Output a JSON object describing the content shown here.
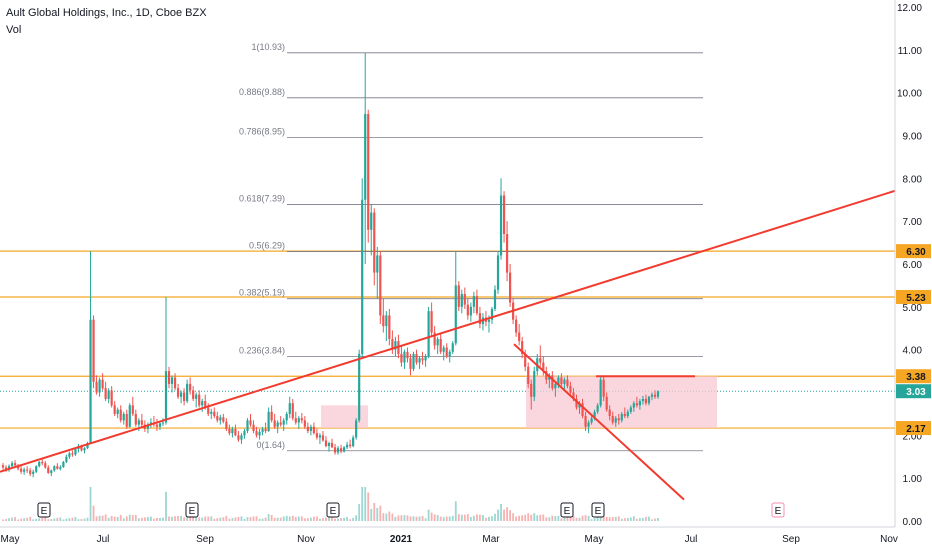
{
  "header": {
    "title": "Ault Global Holdings, Inc., 1D, Cboe BZX",
    "volume_label": "Vol"
  },
  "colors": {
    "bull": "#26a69a",
    "bear": "#ef5350",
    "trendline": "#f23b2f",
    "level_line": "#f5a623",
    "fib_line": "#787b86",
    "zone_fill": "#f8c8d4",
    "last_price": "#26a69a"
  },
  "chart_data": {
    "type": "candlestick",
    "symbol": "Ault Global Holdings, Inc.",
    "interval": "1D",
    "exchange": "Cboe BZX",
    "y_axis": {
      "range": [
        0,
        12
      ],
      "ticks": [
        "0.00",
        "1.00",
        "2.00",
        "3.00",
        "4.00",
        "5.00",
        "6.00",
        "7.00",
        "8.00",
        "9.00",
        "10.00",
        "11.00",
        "12.00"
      ]
    },
    "x_axis": {
      "ticks": [
        "May",
        "Jul",
        "Sep",
        "Nov",
        "2021",
        "Mar",
        "May",
        "Jul",
        "Sep",
        "Nov"
      ]
    },
    "price_levels": [
      {
        "label": "6.30",
        "value": 6.3
      },
      {
        "label": "5.23",
        "value": 5.23
      },
      {
        "label": "3.38",
        "value": 3.38
      },
      {
        "label": "2.17",
        "value": 2.17
      }
    ],
    "last_price": {
      "label": "3.03",
      "value": 3.03
    },
    "fibonacci": [
      {
        "label": "1(10.93)",
        "value": 10.93
      },
      {
        "label": "0.886(9.88)",
        "value": 9.88
      },
      {
        "label": "0.786(8.95)",
        "value": 8.95
      },
      {
        "label": "0.618(7.39)",
        "value": 7.39
      },
      {
        "label": "0.5(6.29)",
        "value": 6.29
      },
      {
        "label": "0.382(5.19)",
        "value": 5.19
      },
      {
        "label": "0.236(3.84)",
        "value": 3.84
      },
      {
        "label": "0(1.64)",
        "value": 1.64
      }
    ],
    "earnings_markers": [
      "E",
      "E",
      "E",
      "E",
      "E",
      "E"
    ],
    "candles_ohlc": [
      [
        1.3,
        1.35,
        1.2,
        1.25
      ],
      [
        1.25,
        1.3,
        1.15,
        1.2
      ],
      [
        1.2,
        1.32,
        1.15,
        1.28
      ],
      [
        1.28,
        1.4,
        1.22,
        1.35
      ],
      [
        1.35,
        1.42,
        1.25,
        1.3
      ],
      [
        1.3,
        1.33,
        1.18,
        1.22
      ],
      [
        1.22,
        1.3,
        1.1,
        1.15
      ],
      [
        1.15,
        1.25,
        1.08,
        1.2
      ],
      [
        1.2,
        1.28,
        1.12,
        1.18
      ],
      [
        1.18,
        1.24,
        1.05,
        1.1
      ],
      [
        1.1,
        1.2,
        1.02,
        1.15
      ],
      [
        1.15,
        1.3,
        1.12,
        1.28
      ],
      [
        1.28,
        1.4,
        1.25,
        1.38
      ],
      [
        1.38,
        1.45,
        1.3,
        1.35
      ],
      [
        1.35,
        1.4,
        1.22,
        1.25
      ],
      [
        1.25,
        1.3,
        1.1,
        1.12
      ],
      [
        1.12,
        1.2,
        1.05,
        1.18
      ],
      [
        1.18,
        1.3,
        1.15,
        1.28
      ],
      [
        1.28,
        1.35,
        1.2,
        1.22
      ],
      [
        1.22,
        1.3,
        1.18,
        1.26
      ],
      [
        1.26,
        1.4,
        1.24,
        1.38
      ],
      [
        1.38,
        1.55,
        1.35,
        1.5
      ],
      [
        1.5,
        1.62,
        1.45,
        1.58
      ],
      [
        1.58,
        1.65,
        1.5,
        1.55
      ],
      [
        1.55,
        1.7,
        1.52,
        1.68
      ],
      [
        1.68,
        1.8,
        1.6,
        1.75
      ],
      [
        1.75,
        1.78,
        1.62,
        1.65
      ],
      [
        1.65,
        1.72,
        1.58,
        1.7
      ],
      [
        1.7,
        1.85,
        1.68,
        1.82
      ],
      [
        1.82,
        6.3,
        1.8,
        4.7
      ],
      [
        4.7,
        4.8,
        3.1,
        3.25
      ],
      [
        3.25,
        3.4,
        2.95,
        3.0
      ],
      [
        3.0,
        3.35,
        2.9,
        3.3
      ],
      [
        3.3,
        3.45,
        3.05,
        3.1
      ],
      [
        3.1,
        3.25,
        2.8,
        2.85
      ],
      [
        2.85,
        3.1,
        2.75,
        3.05
      ],
      [
        3.05,
        3.15,
        2.65,
        2.7
      ],
      [
        2.7,
        2.8,
        2.45,
        2.5
      ],
      [
        2.5,
        2.65,
        2.4,
        2.6
      ],
      [
        2.6,
        2.7,
        2.3,
        2.35
      ],
      [
        2.35,
        2.55,
        2.25,
        2.5
      ],
      [
        2.5,
        2.6,
        2.15,
        2.2
      ],
      [
        2.2,
        2.75,
        2.18,
        2.7
      ],
      [
        2.7,
        2.9,
        2.45,
        2.5
      ],
      [
        2.5,
        2.6,
        2.2,
        2.25
      ],
      [
        2.25,
        2.4,
        2.1,
        2.35
      ],
      [
        2.35,
        2.5,
        2.2,
        2.25
      ],
      [
        2.25,
        2.35,
        2.08,
        2.15
      ],
      [
        2.15,
        2.3,
        2.05,
        2.25
      ],
      [
        2.25,
        2.4,
        2.18,
        2.3
      ],
      [
        2.3,
        2.45,
        2.2,
        2.25
      ],
      [
        2.25,
        2.38,
        2.1,
        2.2
      ],
      [
        2.2,
        2.32,
        2.12,
        2.28
      ],
      [
        2.28,
        2.4,
        2.22,
        2.3
      ],
      [
        2.3,
        5.23,
        2.25,
        3.5
      ],
      [
        3.5,
        3.6,
        3.1,
        3.2
      ],
      [
        3.2,
        3.4,
        3.0,
        3.35
      ],
      [
        3.35,
        3.45,
        3.05,
        3.1
      ],
      [
        3.1,
        3.2,
        2.85,
        2.9
      ],
      [
        2.9,
        3.05,
        2.75,
        3.0
      ],
      [
        3.0,
        3.1,
        2.7,
        2.8
      ],
      [
        2.8,
        3.3,
        2.75,
        3.2
      ],
      [
        3.2,
        3.35,
        2.95,
        3.05
      ],
      [
        3.05,
        3.15,
        2.8,
        2.85
      ],
      [
        2.85,
        3.0,
        2.65,
        2.95
      ],
      [
        2.95,
        3.05,
        2.65,
        2.7
      ],
      [
        2.7,
        2.85,
        2.55,
        2.8
      ],
      [
        2.8,
        2.95,
        2.6,
        2.65
      ],
      [
        2.65,
        2.75,
        2.45,
        2.5
      ],
      [
        2.5,
        2.62,
        2.38,
        2.55
      ],
      [
        2.55,
        2.65,
        2.4,
        2.45
      ],
      [
        2.45,
        2.55,
        2.3,
        2.35
      ],
      [
        2.35,
        2.48,
        2.25,
        2.42
      ],
      [
        2.42,
        2.5,
        2.28,
        2.32
      ],
      [
        2.32,
        2.4,
        2.1,
        2.15
      ],
      [
        2.15,
        2.25,
        2.0,
        2.05
      ],
      [
        2.05,
        2.2,
        1.95,
        2.15
      ],
      [
        2.15,
        2.25,
        1.98,
        2.0
      ],
      [
        2.0,
        2.1,
        1.85,
        1.9
      ],
      [
        1.9,
        2.05,
        1.8,
        2.0
      ],
      [
        2.0,
        2.15,
        1.92,
        2.1
      ],
      [
        2.1,
        2.4,
        2.05,
        2.35
      ],
      [
        2.35,
        2.5,
        2.2,
        2.25
      ],
      [
        2.25,
        2.35,
        2.05,
        2.1
      ],
      [
        2.1,
        2.2,
        1.95,
        2.0
      ],
      [
        2.0,
        2.15,
        1.9,
        2.08
      ],
      [
        2.08,
        2.2,
        2.0,
        2.15
      ],
      [
        2.15,
        2.3,
        2.05,
        2.1
      ],
      [
        2.1,
        2.65,
        2.08,
        2.55
      ],
      [
        2.55,
        2.7,
        2.3,
        2.35
      ],
      [
        2.35,
        2.5,
        2.15,
        2.2
      ],
      [
        2.2,
        2.35,
        2.05,
        2.3
      ],
      [
        2.3,
        2.45,
        2.2,
        2.25
      ],
      [
        2.25,
        2.4,
        2.1,
        2.35
      ],
      [
        2.35,
        2.55,
        2.25,
        2.5
      ],
      [
        2.5,
        2.9,
        2.4,
        2.75
      ],
      [
        2.75,
        2.85,
        2.35,
        2.4
      ],
      [
        2.4,
        2.55,
        2.25,
        2.3
      ],
      [
        2.3,
        2.45,
        2.15,
        2.4
      ],
      [
        2.4,
        2.52,
        2.28,
        2.35
      ],
      [
        2.35,
        2.45,
        2.15,
        2.2
      ],
      [
        2.2,
        2.3,
        2.05,
        2.1
      ],
      [
        2.1,
        2.25,
        2.0,
        2.2
      ],
      [
        2.2,
        2.3,
        2.02,
        2.05
      ],
      [
        2.05,
        2.15,
        1.9,
        1.95
      ],
      [
        1.95,
        2.05,
        1.8,
        2.0
      ],
      [
        2.0,
        2.1,
        1.85,
        1.88
      ],
      [
        1.88,
        1.98,
        1.72,
        1.75
      ],
      [
        1.75,
        1.85,
        1.62,
        1.82
      ],
      [
        1.82,
        1.92,
        1.7,
        1.72
      ],
      [
        1.72,
        1.8,
        1.55,
        1.6
      ],
      [
        1.6,
        1.75,
        1.55,
        1.7
      ],
      [
        1.7,
        1.78,
        1.58,
        1.62
      ],
      [
        1.62,
        1.75,
        1.6,
        1.72
      ],
      [
        1.72,
        1.85,
        1.68,
        1.78
      ],
      [
        1.78,
        1.9,
        1.7,
        1.75
      ],
      [
        1.75,
        2.0,
        1.72,
        1.95
      ],
      [
        1.95,
        2.4,
        1.9,
        2.35
      ],
      [
        2.35,
        4.0,
        2.3,
        3.9
      ],
      [
        3.9,
        8.0,
        3.8,
        7.5
      ],
      [
        7.5,
        10.93,
        6.0,
        9.5
      ],
      [
        9.5,
        9.6,
        6.5,
        6.8
      ],
      [
        6.8,
        7.4,
        6.2,
        7.2
      ],
      [
        7.2,
        7.3,
        5.5,
        5.8
      ],
      [
        5.8,
        6.4,
        5.2,
        6.2
      ],
      [
        6.2,
        6.3,
        4.6,
        4.8
      ],
      [
        4.8,
        5.2,
        4.4,
        4.55
      ],
      [
        4.55,
        4.9,
        4.2,
        4.8
      ],
      [
        4.8,
        4.95,
        4.1,
        4.25
      ],
      [
        4.25,
        4.45,
        3.9,
        4.0
      ],
      [
        4.0,
        4.3,
        3.85,
        4.2
      ],
      [
        4.2,
        4.35,
        3.8,
        3.9
      ],
      [
        3.9,
        4.1,
        3.6,
        3.7
      ],
      [
        3.7,
        4.0,
        3.55,
        3.95
      ],
      [
        3.95,
        4.05,
        3.7,
        3.8
      ],
      [
        3.8,
        3.9,
        3.4,
        3.55
      ],
      [
        3.55,
        3.95,
        3.5,
        3.9
      ],
      [
        3.9,
        4.0,
        3.65,
        3.7
      ],
      [
        3.7,
        3.85,
        3.55,
        3.8
      ],
      [
        3.8,
        3.95,
        3.65,
        3.75
      ],
      [
        3.75,
        3.9,
        3.6,
        3.85
      ],
      [
        3.85,
        5.0,
        3.8,
        4.9
      ],
      [
        4.9,
        5.1,
        4.3,
        4.4
      ],
      [
        4.4,
        4.55,
        4.0,
        4.1
      ],
      [
        4.1,
        4.3,
        3.9,
        4.25
      ],
      [
        4.25,
        4.4,
        3.9,
        3.95
      ],
      [
        3.95,
        4.1,
        3.75,
        4.05
      ],
      [
        4.05,
        4.15,
        3.8,
        3.85
      ],
      [
        3.85,
        4.0,
        3.7,
        3.95
      ],
      [
        3.95,
        4.2,
        3.9,
        4.15
      ],
      [
        4.15,
        6.3,
        4.1,
        5.5
      ],
      [
        5.5,
        5.6,
        4.9,
        5.0
      ],
      [
        5.0,
        5.4,
        4.85,
        5.3
      ],
      [
        5.3,
        5.45,
        4.95,
        5.05
      ],
      [
        5.05,
        5.2,
        4.7,
        4.8
      ],
      [
        4.8,
        5.1,
        4.65,
        5.0
      ],
      [
        5.0,
        5.35,
        4.85,
        5.25
      ],
      [
        5.25,
        5.4,
        4.8,
        4.85
      ],
      [
        4.85,
        5.0,
        4.5,
        4.6
      ],
      [
        4.6,
        4.85,
        4.45,
        4.75
      ],
      [
        4.75,
        4.9,
        4.55,
        4.65
      ],
      [
        4.65,
        4.8,
        4.4,
        4.7
      ],
      [
        4.7,
        5.0,
        4.6,
        4.95
      ],
      [
        4.95,
        5.5,
        4.9,
        5.4
      ],
      [
        5.4,
        6.3,
        5.3,
        6.2
      ],
      [
        6.2,
        8.0,
        6.1,
        7.6
      ],
      [
        7.6,
        7.7,
        6.5,
        6.7
      ],
      [
        6.7,
        7.0,
        5.6,
        5.8
      ],
      [
        5.8,
        6.0,
        5.0,
        5.1
      ],
      [
        5.1,
        5.2,
        4.6,
        4.7
      ],
      [
        4.7,
        4.8,
        4.3,
        4.4
      ],
      [
        4.4,
        4.6,
        4.1,
        4.2
      ],
      [
        4.2,
        4.3,
        3.8,
        3.9
      ],
      [
        3.9,
        4.0,
        3.5,
        3.6
      ],
      [
        3.6,
        3.7,
        3.1,
        3.2
      ],
      [
        3.2,
        3.3,
        2.6,
        2.9
      ],
      [
        2.9,
        3.6,
        2.8,
        3.5
      ],
      [
        3.5,
        3.9,
        3.4,
        3.8
      ],
      [
        3.8,
        4.1,
        3.6,
        3.7
      ],
      [
        3.7,
        3.85,
        3.4,
        3.5
      ],
      [
        3.5,
        3.6,
        3.2,
        3.3
      ],
      [
        3.3,
        3.45,
        3.1,
        3.4
      ],
      [
        3.4,
        3.5,
        3.05,
        3.1
      ],
      [
        3.1,
        3.25,
        2.9,
        3.2
      ],
      [
        3.2,
        3.4,
        3.1,
        3.35
      ],
      [
        3.35,
        3.45,
        3.15,
        3.2
      ],
      [
        3.2,
        3.35,
        3.05,
        3.3
      ],
      [
        3.3,
        3.4,
        3.1,
        3.15
      ],
      [
        3.15,
        3.25,
        2.95,
        3.0
      ],
      [
        3.0,
        3.1,
        2.8,
        2.85
      ],
      [
        2.85,
        2.95,
        2.6,
        2.65
      ],
      [
        2.65,
        2.8,
        2.5,
        2.75
      ],
      [
        2.75,
        2.85,
        2.4,
        2.45
      ],
      [
        2.45,
        2.55,
        2.1,
        2.2
      ],
      [
        2.2,
        2.35,
        2.05,
        2.3
      ],
      [
        2.3,
        2.45,
        2.25,
        2.4
      ],
      [
        2.4,
        2.6,
        2.35,
        2.55
      ],
      [
        2.55,
        2.75,
        2.5,
        2.7
      ],
      [
        2.7,
        3.38,
        2.65,
        3.3
      ],
      [
        3.3,
        3.38,
        2.8,
        2.9
      ],
      [
        2.9,
        3.0,
        2.55,
        2.6
      ],
      [
        2.6,
        2.7,
        2.35,
        2.45
      ],
      [
        2.45,
        2.55,
        2.25,
        2.3
      ],
      [
        2.3,
        2.45,
        2.2,
        2.4
      ],
      [
        2.4,
        2.5,
        2.25,
        2.35
      ],
      [
        2.35,
        2.55,
        2.3,
        2.5
      ],
      [
        2.5,
        2.65,
        2.4,
        2.45
      ],
      [
        2.45,
        2.6,
        2.4,
        2.55
      ],
      [
        2.55,
        2.7,
        2.5,
        2.65
      ],
      [
        2.65,
        2.8,
        2.55,
        2.75
      ],
      [
        2.75,
        2.9,
        2.65,
        2.7
      ],
      [
        2.7,
        2.85,
        2.6,
        2.8
      ],
      [
        2.8,
        2.92,
        2.72,
        2.85
      ],
      [
        2.85,
        2.95,
        2.7,
        2.75
      ],
      [
        2.75,
        2.92,
        2.7,
        2.9
      ],
      [
        2.9,
        3.0,
        2.82,
        2.95
      ],
      [
        2.95,
        3.05,
        2.85,
        2.9
      ],
      [
        2.9,
        3.05,
        2.85,
        3.03
      ]
    ]
  }
}
